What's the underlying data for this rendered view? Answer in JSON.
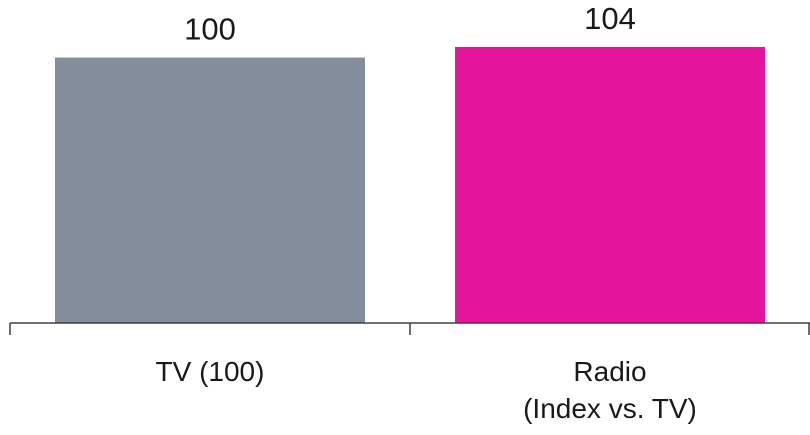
{
  "chart_data": {
    "type": "bar",
    "title": "",
    "xlabel": "",
    "ylabel": "",
    "categories": [
      "TV (100)",
      "Radio\n(Index vs. TV)"
    ],
    "values": [
      100,
      104
    ],
    "data_labels": [
      "100",
      "104"
    ],
    "ylim": [
      0,
      110
    ],
    "grid": false,
    "legend": "none",
    "colors": [
      "#848d9b",
      "#e5149c"
    ]
  }
}
